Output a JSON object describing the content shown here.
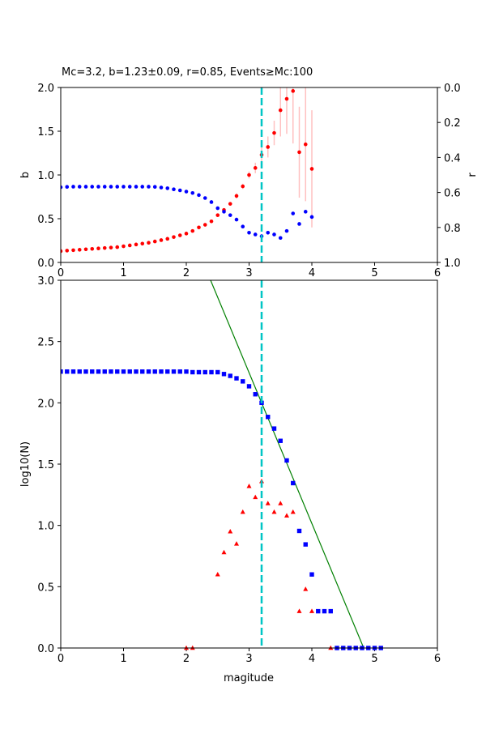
{
  "chart_data": [
    {
      "type": "scatter",
      "title": "Mc=3.2, b=1.23±0.09, r=0.85, Events≥Mc:100",
      "xlim": [
        0,
        6
      ],
      "ylim": [
        0,
        2
      ],
      "ylabel": "b",
      "y2label": "r",
      "y2lim": [
        1,
        0
      ],
      "xticks": [
        "0",
        "1",
        "2",
        "3",
        "4",
        "5",
        "6"
      ],
      "yticks": [
        "0.0",
        "0.5",
        "1.0",
        "1.5",
        "2.0"
      ],
      "y2ticks": [
        "0.0",
        "0.2",
        "0.4",
        "0.6",
        "0.8",
        "1.0"
      ],
      "mc": 3.2,
      "x": [
        0,
        0.1,
        0.2,
        0.3,
        0.4,
        0.5,
        0.6,
        0.7,
        0.8,
        0.9,
        1.0,
        1.1,
        1.2,
        1.3,
        1.4,
        1.5,
        1.6,
        1.7,
        1.8,
        1.9,
        2.0,
        2.1,
        2.2,
        2.3,
        2.4,
        2.5,
        2.6,
        2.7,
        2.8,
        2.9,
        3.0,
        3.1,
        3.2,
        3.3,
        3.4,
        3.5,
        3.6,
        3.7,
        3.8,
        3.9,
        4.0
      ],
      "series": [
        {
          "name": "b",
          "color": "#ff0000",
          "axis": "left",
          "values": [
            0.13,
            0.135,
            0.14,
            0.145,
            0.15,
            0.155,
            0.16,
            0.165,
            0.17,
            0.175,
            0.185,
            0.195,
            0.205,
            0.215,
            0.225,
            0.24,
            0.255,
            0.27,
            0.29,
            0.31,
            0.33,
            0.36,
            0.4,
            0.43,
            0.47,
            0.54,
            0.6,
            0.67,
            0.76,
            0.87,
            1.0,
            1.08,
            1.23,
            1.32,
            1.48,
            1.74,
            1.87,
            1.96,
            1.26,
            1.35,
            1.07
          ],
          "errors": [
            0,
            0,
            0,
            0,
            0,
            0,
            0,
            0,
            0,
            0,
            0,
            0,
            0,
            0,
            0,
            0,
            0,
            0,
            0,
            0,
            0,
            0,
            0,
            0,
            0.01,
            0.01,
            0.02,
            0.02,
            0.03,
            0.03,
            0.04,
            0.06,
            0.09,
            0.12,
            0.14,
            0.3,
            0.4,
            0.6,
            0.52,
            0.65,
            0.67
          ]
        },
        {
          "name": "r",
          "color": "#0000ff",
          "axis": "right",
          "values": [
            0.57,
            0.568,
            0.567,
            0.567,
            0.567,
            0.567,
            0.567,
            0.567,
            0.567,
            0.567,
            0.567,
            0.567,
            0.567,
            0.567,
            0.567,
            0.568,
            0.572,
            0.576,
            0.582,
            0.588,
            0.595,
            0.603,
            0.615,
            0.632,
            0.655,
            0.69,
            0.71,
            0.73,
            0.755,
            0.795,
            0.83,
            0.84,
            0.85,
            0.83,
            0.84,
            0.86,
            0.82,
            0.72,
            0.78,
            0.71,
            0.74
          ]
        }
      ]
    },
    {
      "type": "scatter",
      "xlabel": "magitude",
      "ylabel": "log10(N)",
      "xlim": [
        0,
        6
      ],
      "ylim": [
        0,
        3
      ],
      "xticks": [
        "0",
        "1",
        "2",
        "3",
        "4",
        "5",
        "6"
      ],
      "yticks": [
        "0.0",
        "0.5",
        "1.0",
        "1.5",
        "2.0",
        "2.5",
        "3.0"
      ],
      "mc": 3.2,
      "fit": {
        "a": 5.936,
        "b": 1.23,
        "color": "#008000"
      },
      "series": [
        {
          "name": "cumulative",
          "marker": "square",
          "color": "#0000ff",
          "x": [
            0,
            0.1,
            0.2,
            0.3,
            0.4,
            0.5,
            0.6,
            0.7,
            0.8,
            0.9,
            1.0,
            1.1,
            1.2,
            1.3,
            1.4,
            1.5,
            1.6,
            1.7,
            1.8,
            1.9,
            2.0,
            2.1,
            2.2,
            2.3,
            2.4,
            2.5,
            2.6,
            2.7,
            2.8,
            2.9,
            3.0,
            3.1,
            3.2,
            3.3,
            3.4,
            3.5,
            3.6,
            3.7,
            3.8,
            3.9,
            4.0,
            4.1,
            4.2,
            4.3,
            4.4,
            4.5,
            4.6,
            4.7,
            4.8,
            4.9,
            5.0,
            5.1
          ],
          "values": [
            2.255,
            2.255,
            2.255,
            2.255,
            2.255,
            2.255,
            2.255,
            2.255,
            2.255,
            2.255,
            2.255,
            2.255,
            2.255,
            2.255,
            2.255,
            2.255,
            2.255,
            2.255,
            2.255,
            2.255,
            2.255,
            2.25,
            2.25,
            2.25,
            2.25,
            2.25,
            2.235,
            2.22,
            2.2,
            2.175,
            2.135,
            2.07,
            2.0,
            1.885,
            1.79,
            1.69,
            1.53,
            1.345,
            0.955,
            0.845,
            0.6,
            0.3,
            0.3,
            0.3,
            0,
            0,
            0,
            0,
            0,
            0,
            0,
            0
          ]
        },
        {
          "name": "non-cumulative",
          "marker": "triangle",
          "color": "#ff0000",
          "x": [
            2.0,
            2.1,
            2.5,
            2.6,
            2.7,
            2.8,
            2.9,
            3.0,
            3.1,
            3.2,
            3.3,
            3.4,
            3.5,
            3.6,
            3.7,
            3.8,
            3.9,
            4.0,
            4.3
          ],
          "values": [
            0,
            0,
            0.6,
            0.78,
            0.95,
            0.85,
            1.11,
            1.32,
            1.23,
            1.36,
            1.18,
            1.11,
            1.18,
            1.08,
            1.11,
            0.3,
            0.48,
            0.3,
            0
          ]
        }
      ]
    }
  ]
}
